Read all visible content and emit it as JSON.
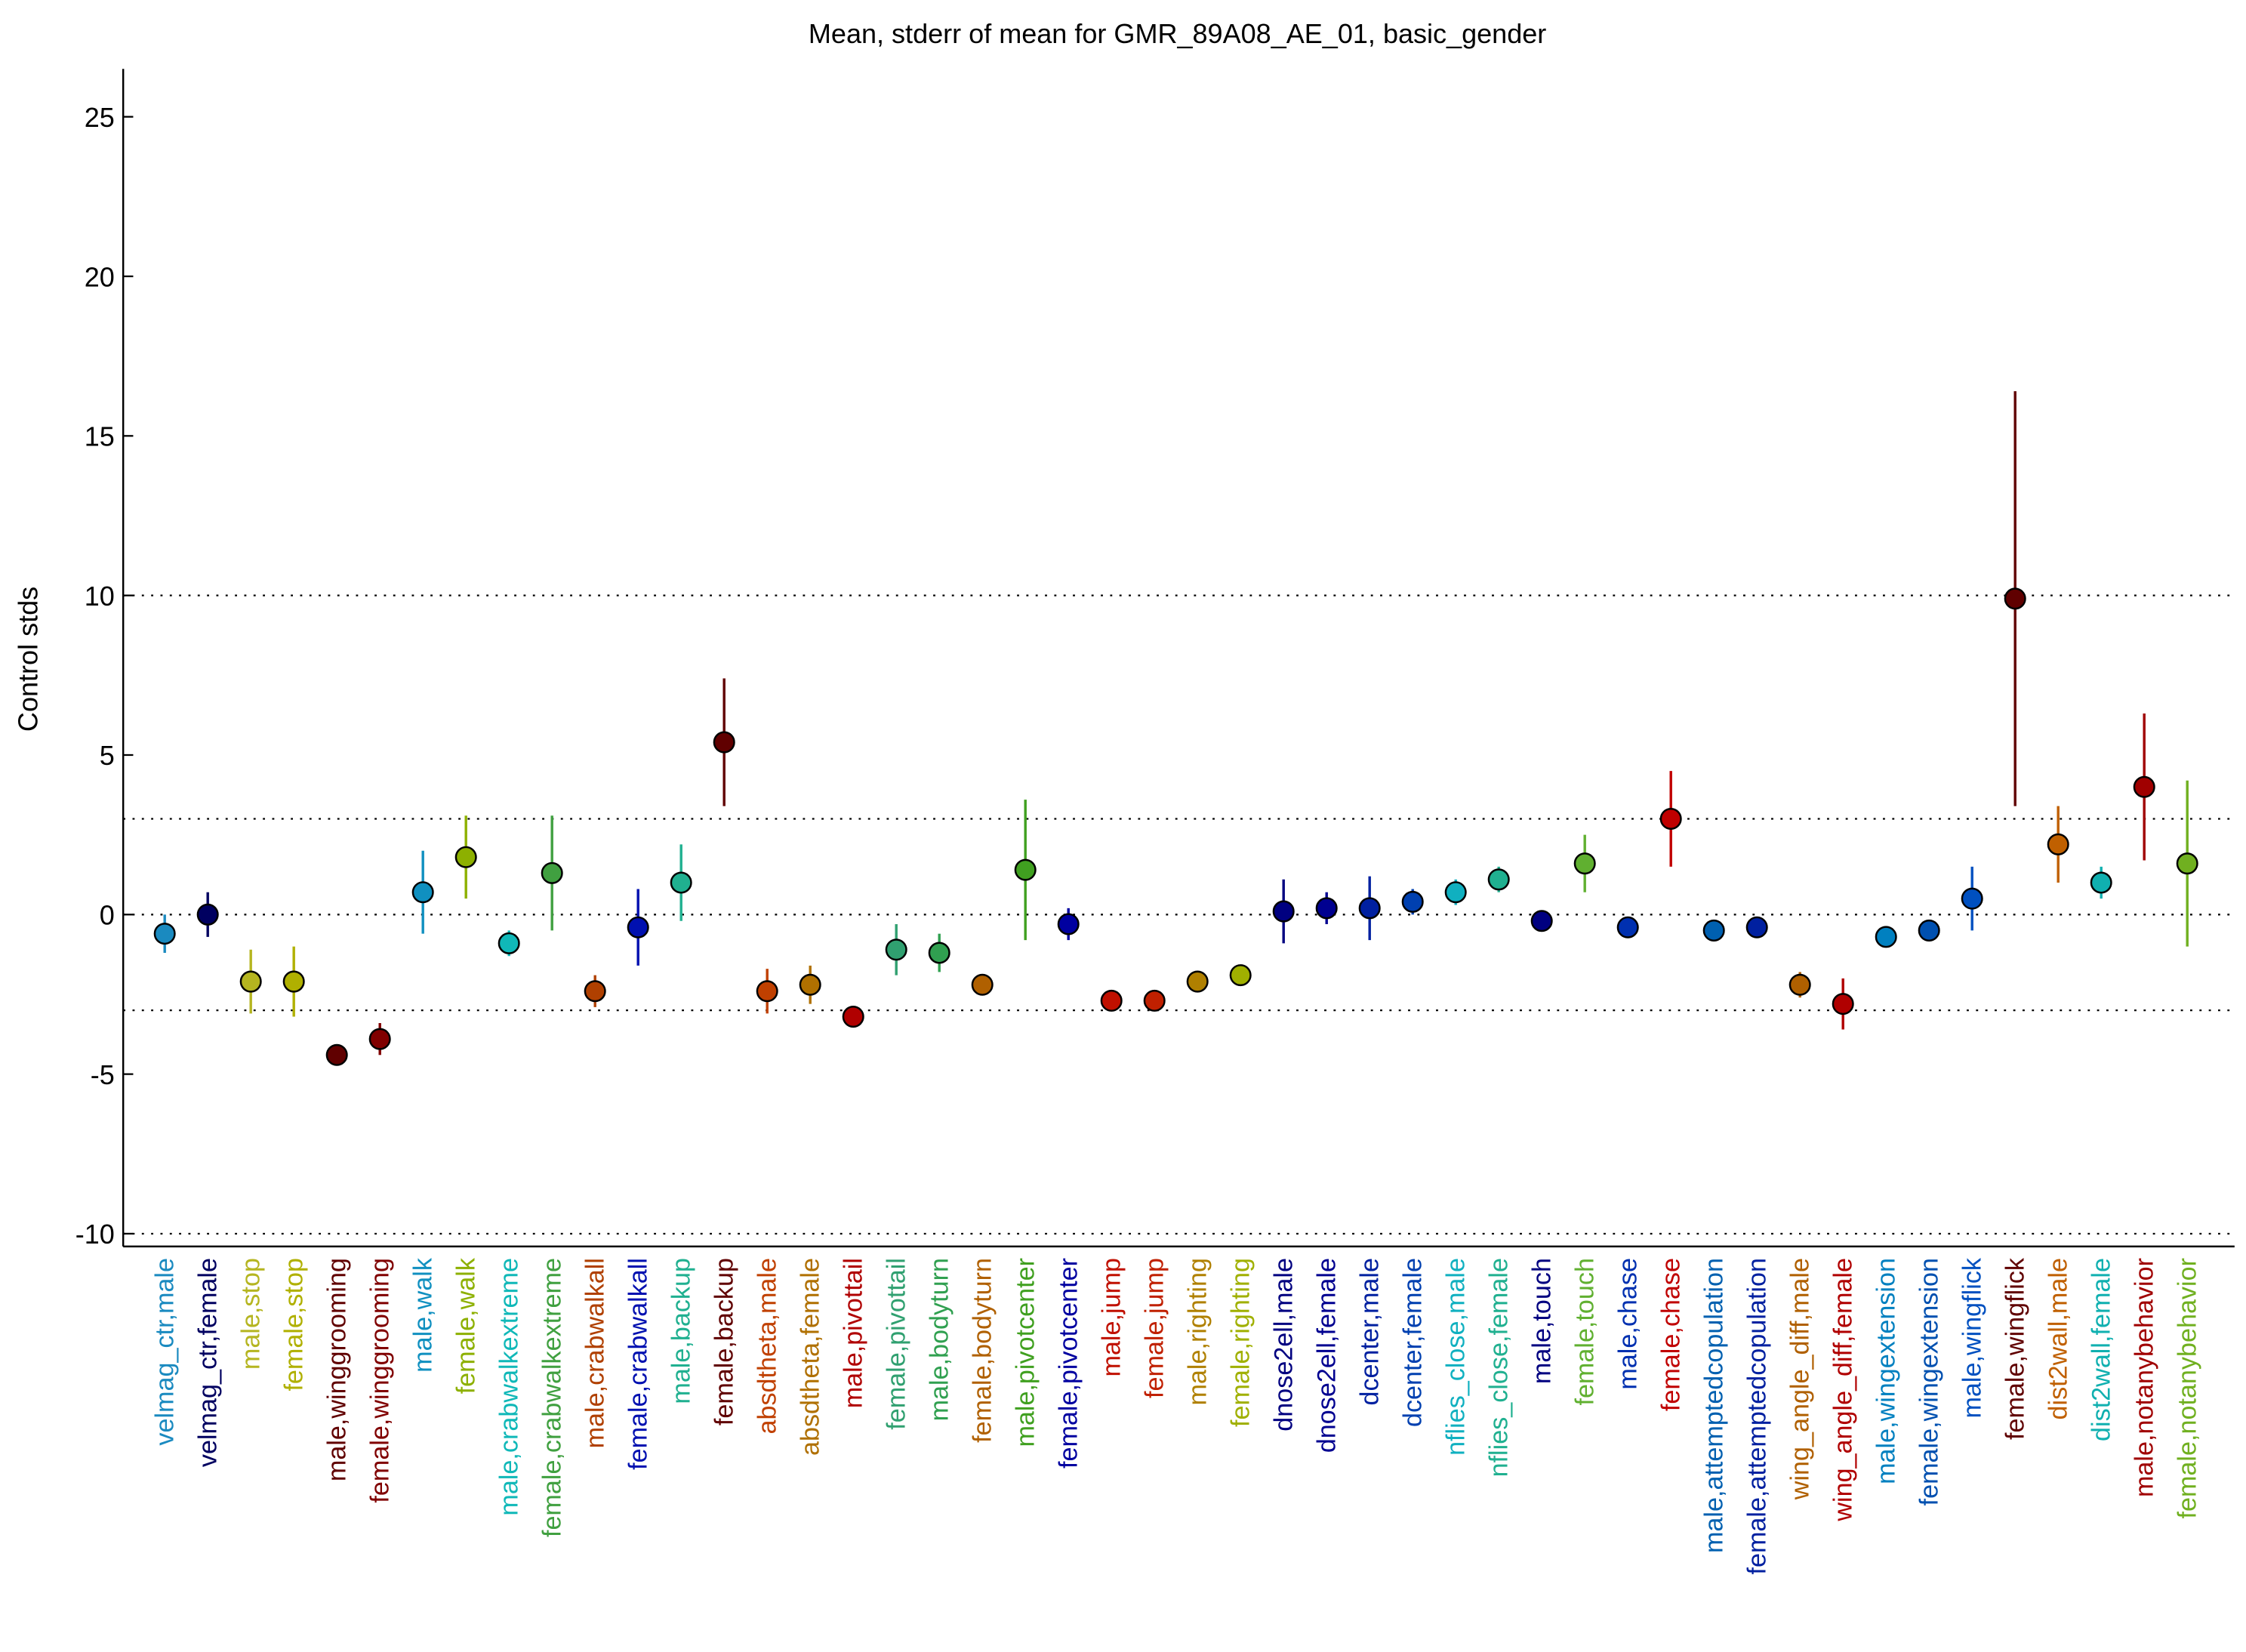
{
  "chart_data": {
    "type": "errorpoint",
    "title": "Mean, stderr of mean for GMR_89A08_AE_01, basic_gender",
    "ylabel": "Control stds",
    "ylim": [
      -10.4,
      26.5
    ],
    "yticks": [
      -10,
      -5,
      0,
      5,
      10,
      15,
      20,
      25
    ],
    "reference_lines": [
      -10,
      -3,
      0,
      3,
      10
    ],
    "categories": [
      "velmag_ctr,male",
      "velmag_ctr,female",
      "male,stop",
      "female,stop",
      "male,winggrooming",
      "female,winggrooming",
      "male,walk",
      "female,walk",
      "male,crabwalkextreme",
      "female,crabwalkextreme",
      "male,crabwalkall",
      "female,crabwalkall",
      "male,backup",
      "female,backup",
      "absdtheta,male",
      "absdtheta,female",
      "male,pivottail",
      "female,pivottail",
      "male,bodyturn",
      "female,bodyturn",
      "male,pivotcenter",
      "female,pivotcenter",
      "male,jump",
      "female,jump",
      "male,righting",
      "female,righting",
      "dnose2ell,male",
      "dnose2ell,female",
      "dcenter,male",
      "dcenter,female",
      "nflies_close,male",
      "nflies_close,female",
      "male,touch",
      "female,touch",
      "male,chase",
      "female,chase",
      "male,attemptedcopulation",
      "female,attemptedcopulation",
      "wing_angle_diff,male",
      "wing_angle_diff,female",
      "male,wingextension",
      "female,wingextension",
      "male,wingflick",
      "female,wingflick",
      "dist2wall,male",
      "dist2wall,female",
      "male,notanybehavior",
      "female,notanybehavior"
    ],
    "values": [
      -0.6,
      0.0,
      -2.1,
      -2.1,
      -4.4,
      -3.9,
      0.7,
      1.8,
      -0.9,
      1.3,
      -2.4,
      -0.4,
      1.0,
      5.4,
      -2.4,
      -2.2,
      -3.2,
      -1.1,
      -1.2,
      -2.2,
      1.4,
      -0.3,
      -2.7,
      -2.7,
      -2.1,
      -1.9,
      0.1,
      0.2,
      0.2,
      0.4,
      0.7,
      1.1,
      -0.2,
      1.6,
      -0.4,
      3.0,
      -0.5,
      -0.4,
      -2.2,
      -2.8,
      -0.7,
      -0.5,
      0.5,
      9.9,
      2.2,
      1.0,
      4.0,
      1.6
    ],
    "errors": [
      0.6,
      0.7,
      1.0,
      1.1,
      0.3,
      0.5,
      1.3,
      1.3,
      0.4,
      1.8,
      0.5,
      1.2,
      1.2,
      2.0,
      0.7,
      0.6,
      0.3,
      0.8,
      0.6,
      0.2,
      2.2,
      0.5,
      0.15,
      0.15,
      0.1,
      0.1,
      1.0,
      0.5,
      1.0,
      0.4,
      0.4,
      0.4,
      0.3,
      0.9,
      0.2,
      1.5,
      0.2,
      0.3,
      0.4,
      0.8,
      0.15,
      0.2,
      1.0,
      6.5,
      1.2,
      0.5,
      2.3,
      2.6
    ],
    "colors": [
      "#1a8ac0",
      "#000060",
      "#b5b520",
      "#b0b000",
      "#600000",
      "#800000",
      "#1090c0",
      "#8db000",
      "#10b8b8",
      "#40a040",
      "#b04000",
      "#0010b0",
      "#20b090",
      "#600000",
      "#c04000",
      "#b07000",
      "#b00000",
      "#30a070",
      "#30a050",
      "#b06000",
      "#40a020",
      "#0000a0",
      "#c01000",
      "#c02000",
      "#b08000",
      "#a0b000",
      "#000080",
      "#000090",
      "#0020a0",
      "#0040b0",
      "#10b0c0",
      "#20b090",
      "#000080",
      "#60b030",
      "#0030b0",
      "#c00000",
      "#0060b0",
      "#0020a0",
      "#b06000",
      "#b00000",
      "#0080c0",
      "#0050b0",
      "#0050c0",
      "#600000",
      "#c06000",
      "#10b0b0",
      "#a00000",
      "#70b020"
    ]
  }
}
